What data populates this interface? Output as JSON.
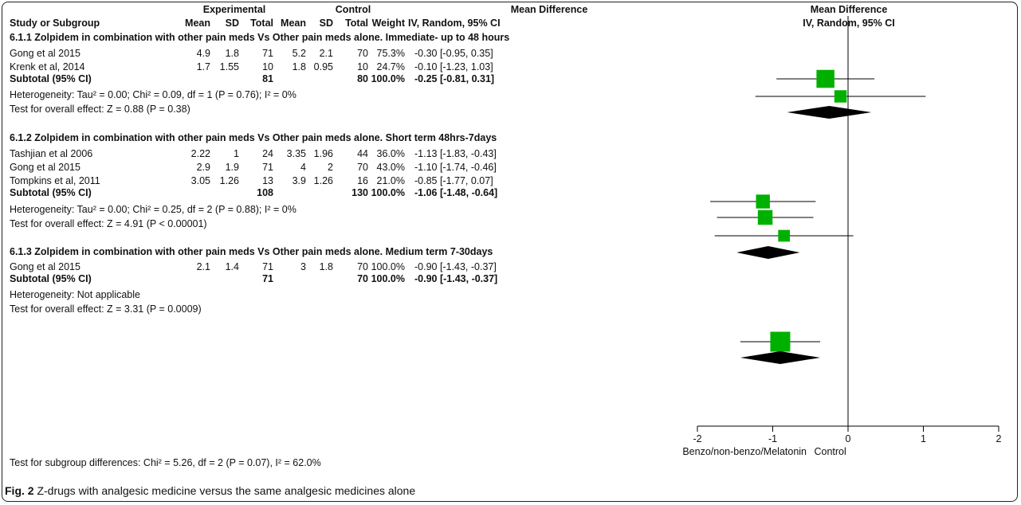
{
  "header": {
    "group1": "Experimental",
    "group2": "Control",
    "md_left": "Mean Difference",
    "md_right": "Mean Difference",
    "col_study": "Study or Subgroup",
    "col_mean1": "Mean",
    "col_sd1": "SD",
    "col_total1": "Total",
    "col_mean2": "Mean",
    "col_sd2": "SD",
    "col_total2": "Total",
    "col_weight": "Weight",
    "col_ci_left": "IV, Random, 95% CI",
    "col_ci_right": "IV, Random, 95% CI"
  },
  "subgroups": [
    {
      "title": "6.1.1 Zolpidem in combination with other pain meds Vs Other pain meds alone. Immediate- up to 48 hours",
      "studies": [
        {
          "name": "Gong et al 2015",
          "mean1": "4.9",
          "sd1": "1.8",
          "n1": "71",
          "mean2": "5.2",
          "sd2": "2.1",
          "n2": "70",
          "weight": "75.3%",
          "ci": "-0.30 [-0.95, 0.35]"
        },
        {
          "name": "Krenk et al, 2014",
          "mean1": "1.7",
          "sd1": "1.55",
          "n1": "10",
          "mean2": "1.8",
          "sd2": "0.95",
          "n2": "10",
          "weight": "24.7%",
          "ci": "-0.10 [-1.23, 1.03]"
        }
      ],
      "subtotal": {
        "label": "Subtotal (95% CI)",
        "n1": "81",
        "n2": "80",
        "weight": "100.0%",
        "ci": "-0.25 [-0.81, 0.31]"
      },
      "heterogeneity": "Heterogeneity: Tau² = 0.00; Chi² = 0.09, df = 1 (P = 0.76); I² = 0%",
      "overall": "Test for overall effect: Z = 0.88 (P = 0.38)"
    },
    {
      "title": "6.1.2 Zolpidem in combination with other pain meds Vs Other pain meds alone. Short term 48hrs-7days",
      "studies": [
        {
          "name": "Tashjian et al 2006",
          "mean1": "2.22",
          "sd1": "1",
          "n1": "24",
          "mean2": "3.35",
          "sd2": "1.96",
          "n2": "44",
          "weight": "36.0%",
          "ci": "-1.13 [-1.83, -0.43]"
        },
        {
          "name": "Gong et al 2015",
          "mean1": "2.9",
          "sd1": "1.9",
          "n1": "71",
          "mean2": "4",
          "sd2": "2",
          "n2": "70",
          "weight": "43.0%",
          "ci": "-1.10 [-1.74, -0.46]"
        },
        {
          "name": "Tompkins et al, 2011",
          "mean1": "3.05",
          "sd1": "1.26",
          "n1": "13",
          "mean2": "3.9",
          "sd2": "1.26",
          "n2": "16",
          "weight": "21.0%",
          "ci": "-0.85 [-1.77, 0.07]"
        }
      ],
      "subtotal": {
        "label": "Subtotal (95% CI)",
        "n1": "108",
        "n2": "130",
        "weight": "100.0%",
        "ci": "-1.06 [-1.48, -0.64]"
      },
      "heterogeneity": "Heterogeneity: Tau² = 0.00; Chi² = 0.25, df = 2 (P = 0.88); I² = 0%",
      "overall": "Test for overall effect: Z = 4.91 (P < 0.00001)"
    },
    {
      "title": "6.1.3 Zolpidem in combination with other pain meds Vs Other pain meds alone. Medium term 7-30days",
      "studies": [
        {
          "name": "Gong et al 2015",
          "mean1": "2.1",
          "sd1": "1.4",
          "n1": "71",
          "mean2": "3",
          "sd2": "1.8",
          "n2": "70",
          "weight": "100.0%",
          "ci": "-0.90 [-1.43, -0.37]"
        }
      ],
      "subtotal": {
        "label": "Subtotal (95% CI)",
        "n1": "71",
        "n2": "70",
        "weight": "100.0%",
        "ci": "-0.90 [-1.43, -0.37]"
      },
      "heterogeneity": "Heterogeneity: Not applicable",
      "overall": "Test for overall effect: Z = 3.31 (P = 0.0009)"
    }
  ],
  "subgroup_test": "Test for subgroup differences: Chi² = 5.26, df = 2 (P = 0.07), I² = 62.0%",
  "caption": {
    "fig": "Fig. 2",
    "text": " Z-drugs with analgesic medicine versus the same analgesic medicines alone"
  },
  "chart_data": {
    "type": "forest",
    "title": "",
    "xlim": [
      -2,
      2
    ],
    "ticks": [
      -2,
      -1,
      0,
      1,
      2
    ],
    "tick_labels": [
      "-2",
      "-1",
      "0",
      "1",
      "2"
    ],
    "xlabel_left": "Benzo/non-benzo/Melatonin",
    "xlabel_right": "Control",
    "square_color": "#00b000",
    "diamond_color": "#000000",
    "studies": [
      {
        "group": 0,
        "md": -0.3,
        "lo": -0.95,
        "hi": 0.35,
        "weight": 75.3
      },
      {
        "group": 0,
        "md": -0.1,
        "lo": -1.23,
        "hi": 1.03,
        "weight": 24.7
      },
      {
        "group": 1,
        "md": -1.13,
        "lo": -1.83,
        "hi": -0.43,
        "weight": 36.0
      },
      {
        "group": 1,
        "md": -1.1,
        "lo": -1.74,
        "hi": -0.46,
        "weight": 43.0
      },
      {
        "group": 1,
        "md": -0.85,
        "lo": -1.77,
        "hi": 0.07,
        "weight": 21.0
      },
      {
        "group": 2,
        "md": -0.9,
        "lo": -1.43,
        "hi": -0.37,
        "weight": 100.0
      }
    ],
    "subtotals": [
      {
        "group": 0,
        "md": -0.25,
        "lo": -0.81,
        "hi": 0.31
      },
      {
        "group": 1,
        "md": -1.06,
        "lo": -1.48,
        "hi": -0.64
      },
      {
        "group": 2,
        "md": -0.9,
        "lo": -1.43,
        "hi": -0.37
      }
    ]
  }
}
